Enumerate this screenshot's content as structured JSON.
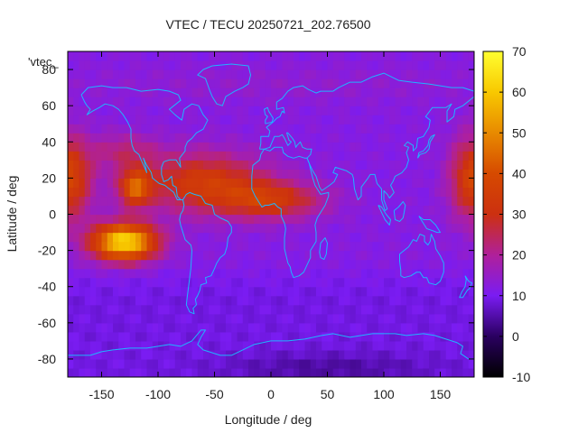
{
  "chart_data": {
    "type": "heatmap",
    "title": "VTEC / TECU 20250721_202.76500",
    "xlabel": "Longitude / deg",
    "ylabel": "Latitude / deg",
    "series_label": "'vtec_",
    "xlim": [
      -180,
      180
    ],
    "ylim": [
      -90,
      90
    ],
    "xticks": [
      -150,
      -100,
      -50,
      0,
      50,
      100,
      150
    ],
    "yticks": [
      -80,
      -60,
      -40,
      -20,
      0,
      20,
      40,
      60,
      80
    ],
    "colorbar": {
      "range": [
        -10,
        70
      ],
      "ticks": [
        -10,
        0,
        10,
        20,
        30,
        40,
        50,
        60,
        70
      ],
      "palette": [
        [
          -10,
          "#000000"
        ],
        [
          0,
          "#2a0060"
        ],
        [
          10,
          "#7a1cf2"
        ],
        [
          20,
          "#b0209a"
        ],
        [
          30,
          "#cc3010"
        ],
        [
          40,
          "#d64a00"
        ],
        [
          50,
          "#e88a00"
        ],
        [
          60,
          "#f8c800"
        ],
        [
          70,
          "#ffff30"
        ]
      ]
    },
    "grid": false,
    "colors": {
      "background": "#ffffff",
      "coastline": "#1fb4ff",
      "axis": "#000000"
    },
    "data": {
      "background_tecu": 12,
      "southern_tecu": 9,
      "enhancements": [
        {
          "lon": -130,
          "lat": -15,
          "lon_spread": 28,
          "lat_spread": 10,
          "tecu": 52
        },
        {
          "lon": -120,
          "lat": 15,
          "lon_spread": 14,
          "lat_spread": 10,
          "tecu": 28
        },
        {
          "lon": -60,
          "lat": 18,
          "lon_spread": 55,
          "lat_spread": 16,
          "tecu": 22
        },
        {
          "lon": 0,
          "lat": 8,
          "lon_spread": 45,
          "lat_spread": 10,
          "tecu": 20
        },
        {
          "lon": -130,
          "lat": 35,
          "lon_spread": 30,
          "lat_spread": 10,
          "tecu": 10
        },
        {
          "lon": 180,
          "lat": 20,
          "lon_spread": 20,
          "lat_spread": 22,
          "tecu": 26
        },
        {
          "lon": -180,
          "lat": 20,
          "lon_spread": 20,
          "lat_spread": 22,
          "tecu": 26
        },
        {
          "lon": 0,
          "lat": 72,
          "lon_spread": 200,
          "lat_spread": 10,
          "tecu": 2
        }
      ],
      "depletion": {
        "lon": 50,
        "lat": -85,
        "lon_spread": 90,
        "lat_spread": 8,
        "tecu": -5
      }
    }
  }
}
